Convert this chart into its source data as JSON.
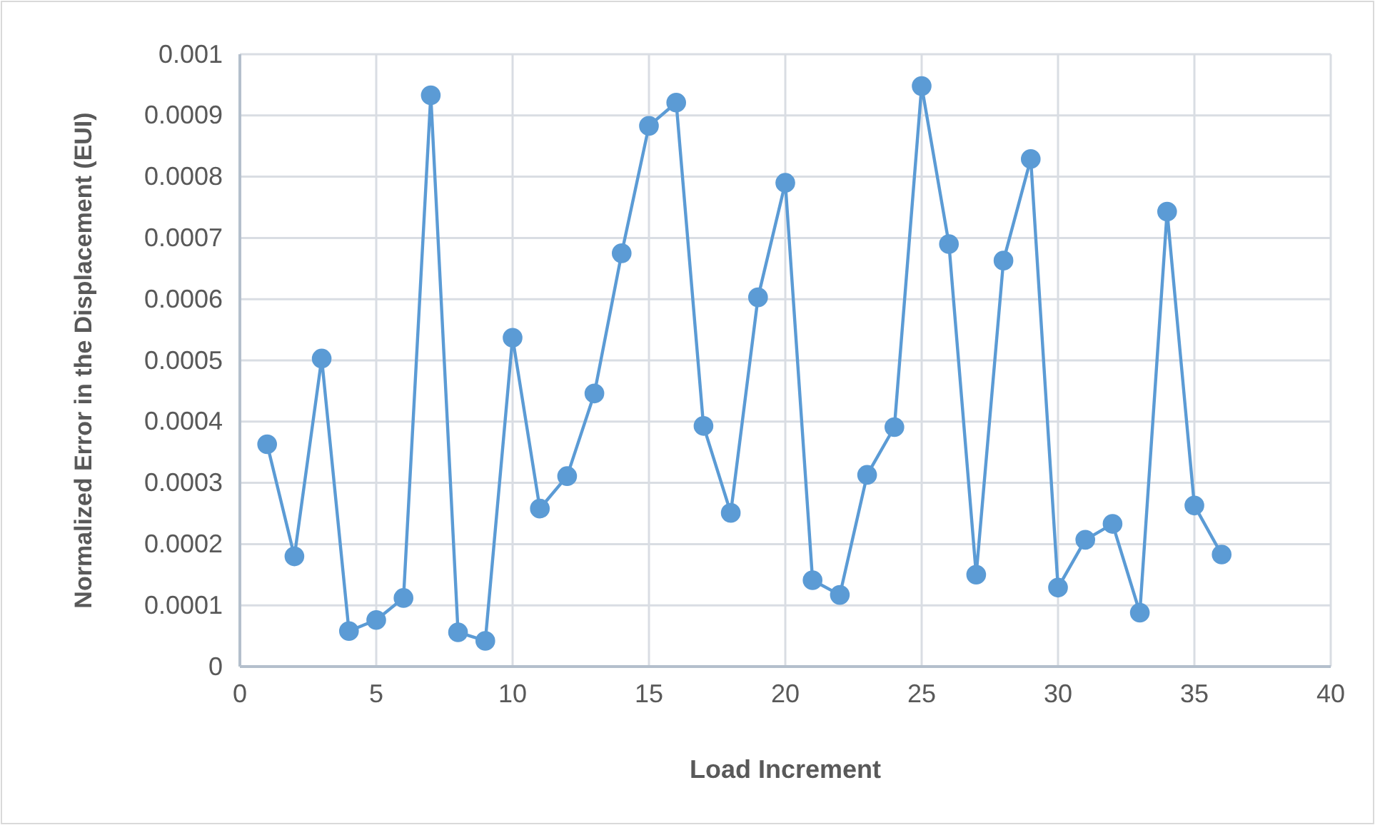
{
  "chart_data": {
    "type": "line",
    "xlabel": "Load Increment",
    "ylabel": "Normalized Error in the Displacement (EUI)",
    "x": [
      1,
      2,
      3,
      4,
      5,
      6,
      7,
      8,
      9,
      10,
      11,
      12,
      13,
      14,
      15,
      16,
      17,
      18,
      19,
      20,
      21,
      22,
      23,
      24,
      25,
      26,
      27,
      28,
      29,
      30,
      31,
      32,
      33,
      34,
      35,
      36
    ],
    "series": [
      {
        "color": "#5b9bd5",
        "values": [
          0.000363,
          0.00018,
          0.000503,
          5.8e-05,
          7.6e-05,
          0.000112,
          0.000933,
          5.6e-05,
          4.2e-05,
          0.000537,
          0.000258,
          0.000311,
          0.000446,
          0.000675,
          0.000883,
          0.000921,
          0.000393,
          0.000251,
          0.000603,
          0.00079,
          0.000141,
          0.000117,
          0.000313,
          0.000391,
          0.000948,
          0.00069,
          0.00015,
          0.000663,
          0.000829,
          0.000129,
          0.000207,
          0.000233,
          8.8e-05,
          0.000743,
          0.000263,
          0.000183
        ]
      }
    ],
    "xlim": [
      0,
      40
    ],
    "xticks": [
      0,
      5,
      10,
      15,
      20,
      25,
      30,
      35,
      40
    ],
    "ylim": [
      0,
      0.001
    ],
    "yticks": [
      0,
      0.0001,
      0.0002,
      0.0003,
      0.0004,
      0.0005,
      0.0006,
      0.0007,
      0.0008,
      0.0009,
      0.001
    ],
    "grid": true,
    "marker": "circle",
    "line_style": "solid"
  }
}
